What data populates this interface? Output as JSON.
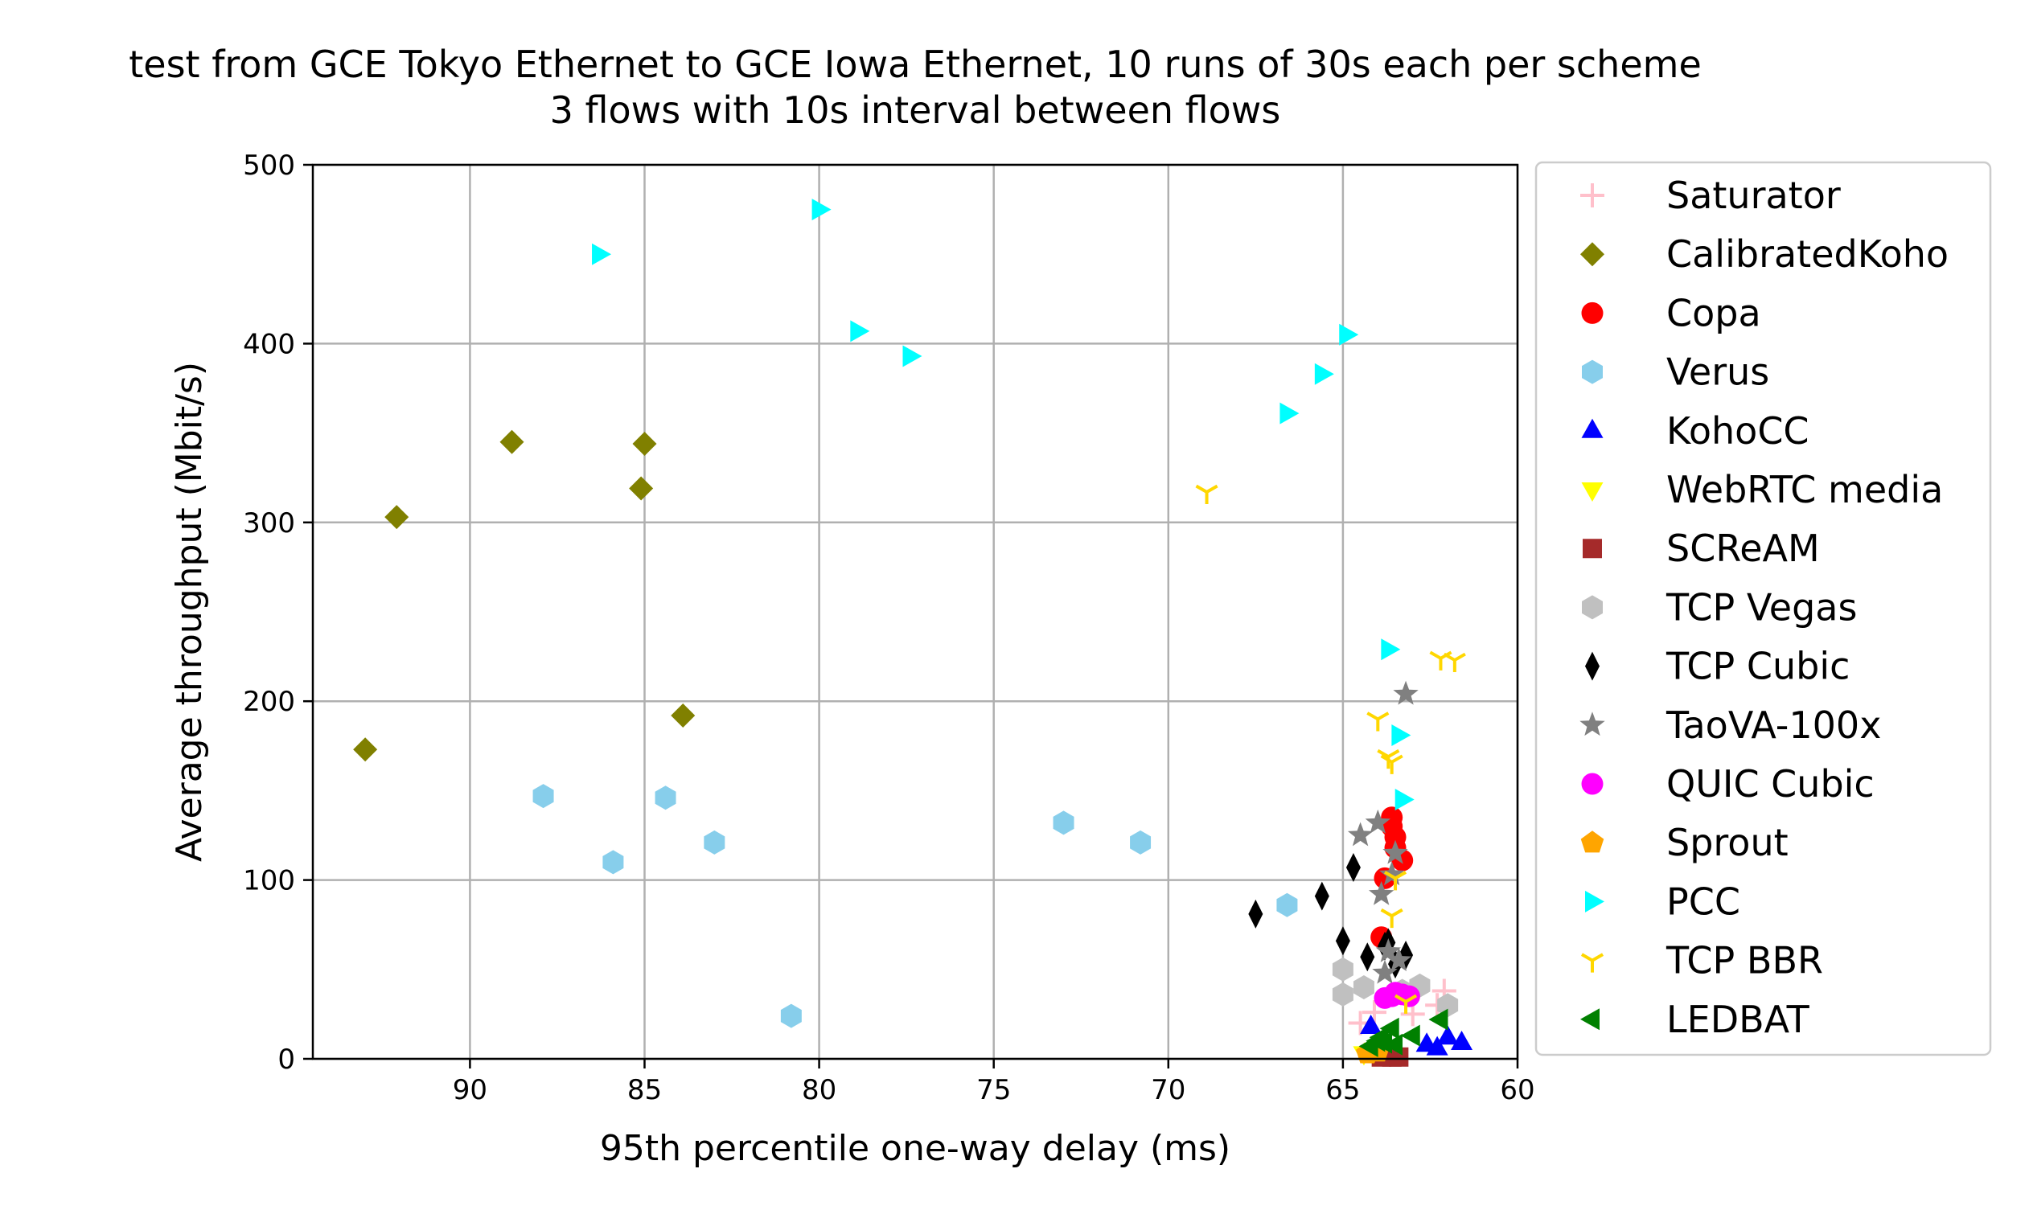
{
  "chart_data": {
    "type": "scatter",
    "title_lines": [
      "test from GCE Tokyo Ethernet to GCE Iowa Ethernet, 10 runs of 30s each per scheme",
      "3 flows with 10s interval between flows"
    ],
    "xlabel": "95th percentile one-way delay (ms)",
    "ylabel": "Average throughput (Mbit/s)",
    "xlim": [
      94.5,
      60
    ],
    "x_inverted": true,
    "ylim": [
      0,
      500
    ],
    "xticks": [
      90,
      85,
      80,
      75,
      70,
      65,
      60
    ],
    "yticks": [
      0,
      100,
      200,
      300,
      400,
      500
    ],
    "grid": true,
    "legend_position": "outside-right",
    "series": [
      {
        "name": "Saturator",
        "marker": "plus",
        "color": "#ffc0cb",
        "points": [
          [
            64.1,
            26
          ],
          [
            62.1,
            38
          ],
          [
            62.3,
            30
          ],
          [
            63.0,
            25
          ],
          [
            64.5,
            20
          ]
        ]
      },
      {
        "name": "CalibratedKoho",
        "marker": "diamond",
        "color": "#808000",
        "points": [
          [
            88.8,
            345
          ],
          [
            85.0,
            344
          ],
          [
            85.1,
            319
          ],
          [
            92.1,
            303
          ],
          [
            83.9,
            192
          ],
          [
            93.0,
            173
          ]
        ]
      },
      {
        "name": "Copa",
        "marker": "circle",
        "color": "#ff0000",
        "points": [
          [
            63.6,
            135
          ],
          [
            63.5,
            124
          ],
          [
            63.3,
            111
          ],
          [
            63.8,
            101
          ],
          [
            63.5,
            118
          ],
          [
            63.9,
            68
          ],
          [
            63.6,
            130
          ]
        ]
      },
      {
        "name": "Verus",
        "marker": "hexagon",
        "color": "#87ceeb",
        "points": [
          [
            87.9,
            147
          ],
          [
            84.4,
            146
          ],
          [
            73.0,
            132
          ],
          [
            83.0,
            121
          ],
          [
            70.8,
            121
          ],
          [
            85.9,
            110
          ],
          [
            66.6,
            86
          ],
          [
            80.8,
            24
          ]
        ]
      },
      {
        "name": "KohoCC",
        "marker": "triangle-up",
        "color": "#0000ff",
        "points": [
          [
            62.6,
            8
          ],
          [
            62.0,
            12
          ],
          [
            61.6,
            9
          ],
          [
            64.2,
            18
          ],
          [
            62.3,
            6
          ]
        ]
      },
      {
        "name": "WebRTC media",
        "marker": "triangle-down",
        "color": "#ffff00",
        "points": [
          [
            64.4,
            3
          ],
          [
            64.1,
            5
          ],
          [
            63.8,
            6
          ]
        ]
      },
      {
        "name": "SCReAM",
        "marker": "square",
        "color": "#a52a2a",
        "points": [
          [
            63.9,
            1
          ],
          [
            63.6,
            1
          ],
          [
            63.4,
            1
          ]
        ]
      },
      {
        "name": "TCP Vegas",
        "marker": "hexagon",
        "color": "#c0c0c0",
        "points": [
          [
            65.0,
            50
          ],
          [
            64.4,
            40
          ],
          [
            65.0,
            36
          ],
          [
            62.8,
            41
          ],
          [
            63.3,
            38
          ],
          [
            62.0,
            30
          ]
        ]
      },
      {
        "name": "TCP Cubic",
        "marker": "thin-diamond",
        "color": "#000000",
        "points": [
          [
            64.7,
            107
          ],
          [
            65.6,
            91
          ],
          [
            67.5,
            81
          ],
          [
            63.7,
            65
          ],
          [
            65.0,
            66
          ],
          [
            64.3,
            57
          ],
          [
            63.2,
            58
          ],
          [
            63.5,
            53
          ],
          [
            63.8,
            63
          ]
        ]
      },
      {
        "name": "TaoVA-100x",
        "marker": "star",
        "color": "#808080",
        "points": [
          [
            63.2,
            204
          ],
          [
            64.5,
            125
          ],
          [
            64.0,
            132
          ],
          [
            63.5,
            115
          ],
          [
            63.9,
            92
          ],
          [
            63.6,
            103
          ],
          [
            63.4,
            55
          ],
          [
            63.7,
            60
          ],
          [
            63.8,
            48
          ]
        ]
      },
      {
        "name": "QUIC Cubic",
        "marker": "circle",
        "color": "#ff00ff",
        "points": [
          [
            63.6,
            35
          ],
          [
            63.3,
            36
          ],
          [
            63.8,
            34
          ],
          [
            63.5,
            37
          ],
          [
            63.1,
            35
          ]
        ]
      },
      {
        "name": "Sprout",
        "marker": "pentagon",
        "color": "#ffa500",
        "points": [
          [
            64.3,
            3
          ],
          [
            64.0,
            4
          ]
        ]
      },
      {
        "name": "PCC",
        "marker": "triangle-right",
        "color": "#00ffff",
        "points": [
          [
            80.0,
            475
          ],
          [
            86.3,
            450
          ],
          [
            64.9,
            405
          ],
          [
            78.9,
            407
          ],
          [
            77.4,
            393
          ],
          [
            65.6,
            383
          ],
          [
            66.6,
            361
          ],
          [
            63.7,
            229
          ],
          [
            63.4,
            181
          ],
          [
            63.3,
            145
          ]
        ]
      },
      {
        "name": "TCP BBR",
        "marker": "tri-down",
        "color": "#ffd700",
        "points": [
          [
            68.9,
            317
          ],
          [
            62.2,
            224
          ],
          [
            61.8,
            223
          ],
          [
            64.0,
            190
          ],
          [
            63.7,
            169
          ],
          [
            63.6,
            166
          ],
          [
            63.5,
            101
          ],
          [
            63.6,
            80
          ],
          [
            63.2,
            32
          ]
        ]
      },
      {
        "name": "LEDBAT",
        "marker": "triangle-left",
        "color": "#008000",
        "points": [
          [
            62.2,
            22
          ],
          [
            63.0,
            13
          ],
          [
            63.6,
            17
          ],
          [
            63.9,
            12
          ],
          [
            64.2,
            7
          ],
          [
            63.8,
            9
          ],
          [
            64.0,
            10
          ],
          [
            63.5,
            8
          ]
        ]
      }
    ]
  }
}
